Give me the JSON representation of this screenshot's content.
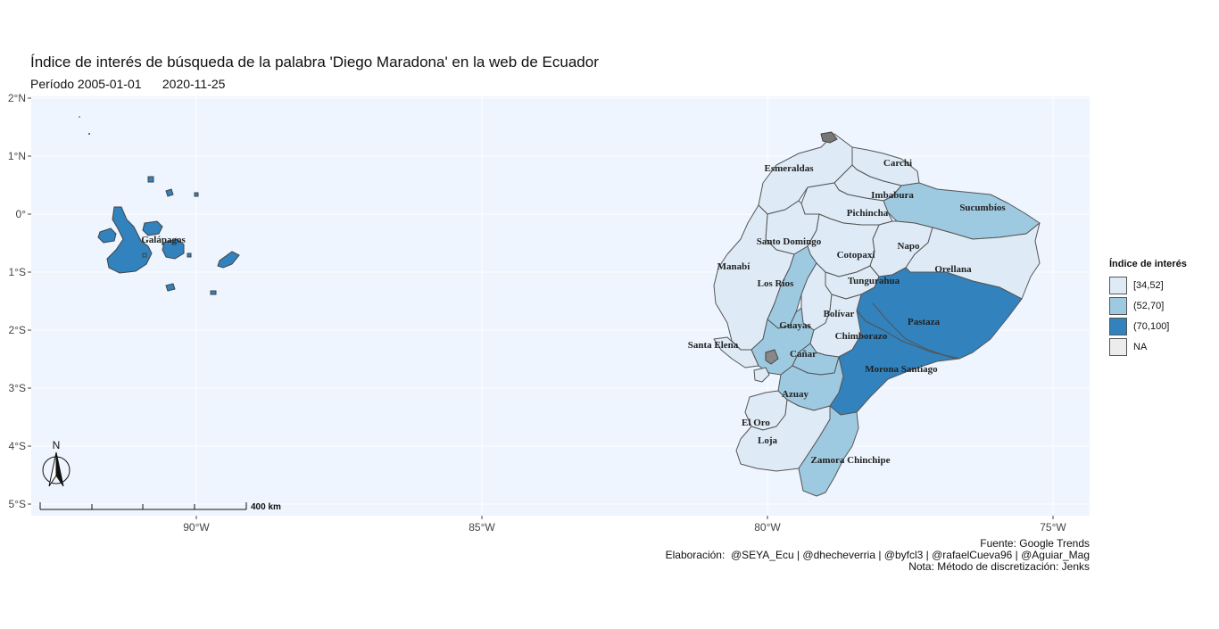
{
  "title": "Índice de interés de búsqueda de la palabra 'Diego Maradona' en la web de Ecuador",
  "subtitle": "Período 2005-01-01      2020-11-25",
  "caption": {
    "source": "Fuente: Google Trends",
    "authors": "Elaboración:  @SEYA_Ecu | @dhecheverria | @byfcl3 | @rafaelCueva96 | @Aguiar_Mag",
    "note": "Nota: Método de discretización: Jenks"
  },
  "axes": {
    "lat_ticks": [
      "2°N",
      "1°N",
      "0°",
      "1°S",
      "2°S",
      "3°S",
      "4°S",
      "5°S"
    ],
    "lon_ticks": [
      "90°W",
      "85°W",
      "80°W",
      "75°W"
    ]
  },
  "legend": {
    "title": "Índice de interés",
    "items": [
      {
        "label": "[34,52]",
        "color": "#deebf7"
      },
      {
        "label": "(52,70]",
        "color": "#9ecae1"
      },
      {
        "label": "(70,100]",
        "color": "#3182bd"
      },
      {
        "label": "NA",
        "color": "#ececec"
      }
    ]
  },
  "north_arrow": "N",
  "scale_bar": "400 km",
  "colors": {
    "panel": "#eef5fe",
    "grid": "#ffffff",
    "border": "#555555"
  },
  "provinces": [
    {
      "name": "Esmeraldas",
      "class": "[34,52]"
    },
    {
      "name": "Carchi",
      "class": "[34,52]"
    },
    {
      "name": "Imbabura",
      "class": "[34,52]"
    },
    {
      "name": "Sucumbíos",
      "class": "(52,70]"
    },
    {
      "name": "Pichincha",
      "class": "[34,52]"
    },
    {
      "name": "Santo Domingo",
      "class": "[34,52]"
    },
    {
      "name": "Napo",
      "class": "[34,52]"
    },
    {
      "name": "Cotopaxi",
      "class": "[34,52]"
    },
    {
      "name": "Orellana",
      "class": "[34,52]"
    },
    {
      "name": "Manabí",
      "class": "[34,52]"
    },
    {
      "name": "Los Ríos",
      "class": "(52,70]"
    },
    {
      "name": "Tungurahua",
      "class": "[34,52]"
    },
    {
      "name": "Pastaza",
      "class": "(70,100]"
    },
    {
      "name": "Bolívar",
      "class": "[34,52]"
    },
    {
      "name": "Guayas",
      "class": "(52,70]"
    },
    {
      "name": "Chimborazo",
      "class": "[34,52]"
    },
    {
      "name": "Santa Elena",
      "class": "[34,52]"
    },
    {
      "name": "Cañar",
      "class": "(52,70]"
    },
    {
      "name": "Morona Santiago",
      "class": "(70,100]"
    },
    {
      "name": "Azuay",
      "class": "(52,70]"
    },
    {
      "name": "El Oro",
      "class": "[34,52]"
    },
    {
      "name": "Loja",
      "class": "[34,52]"
    },
    {
      "name": "Zamora Chinchipe",
      "class": "(52,70]"
    },
    {
      "name": "Galápagos",
      "class": "(70,100]"
    }
  ]
}
